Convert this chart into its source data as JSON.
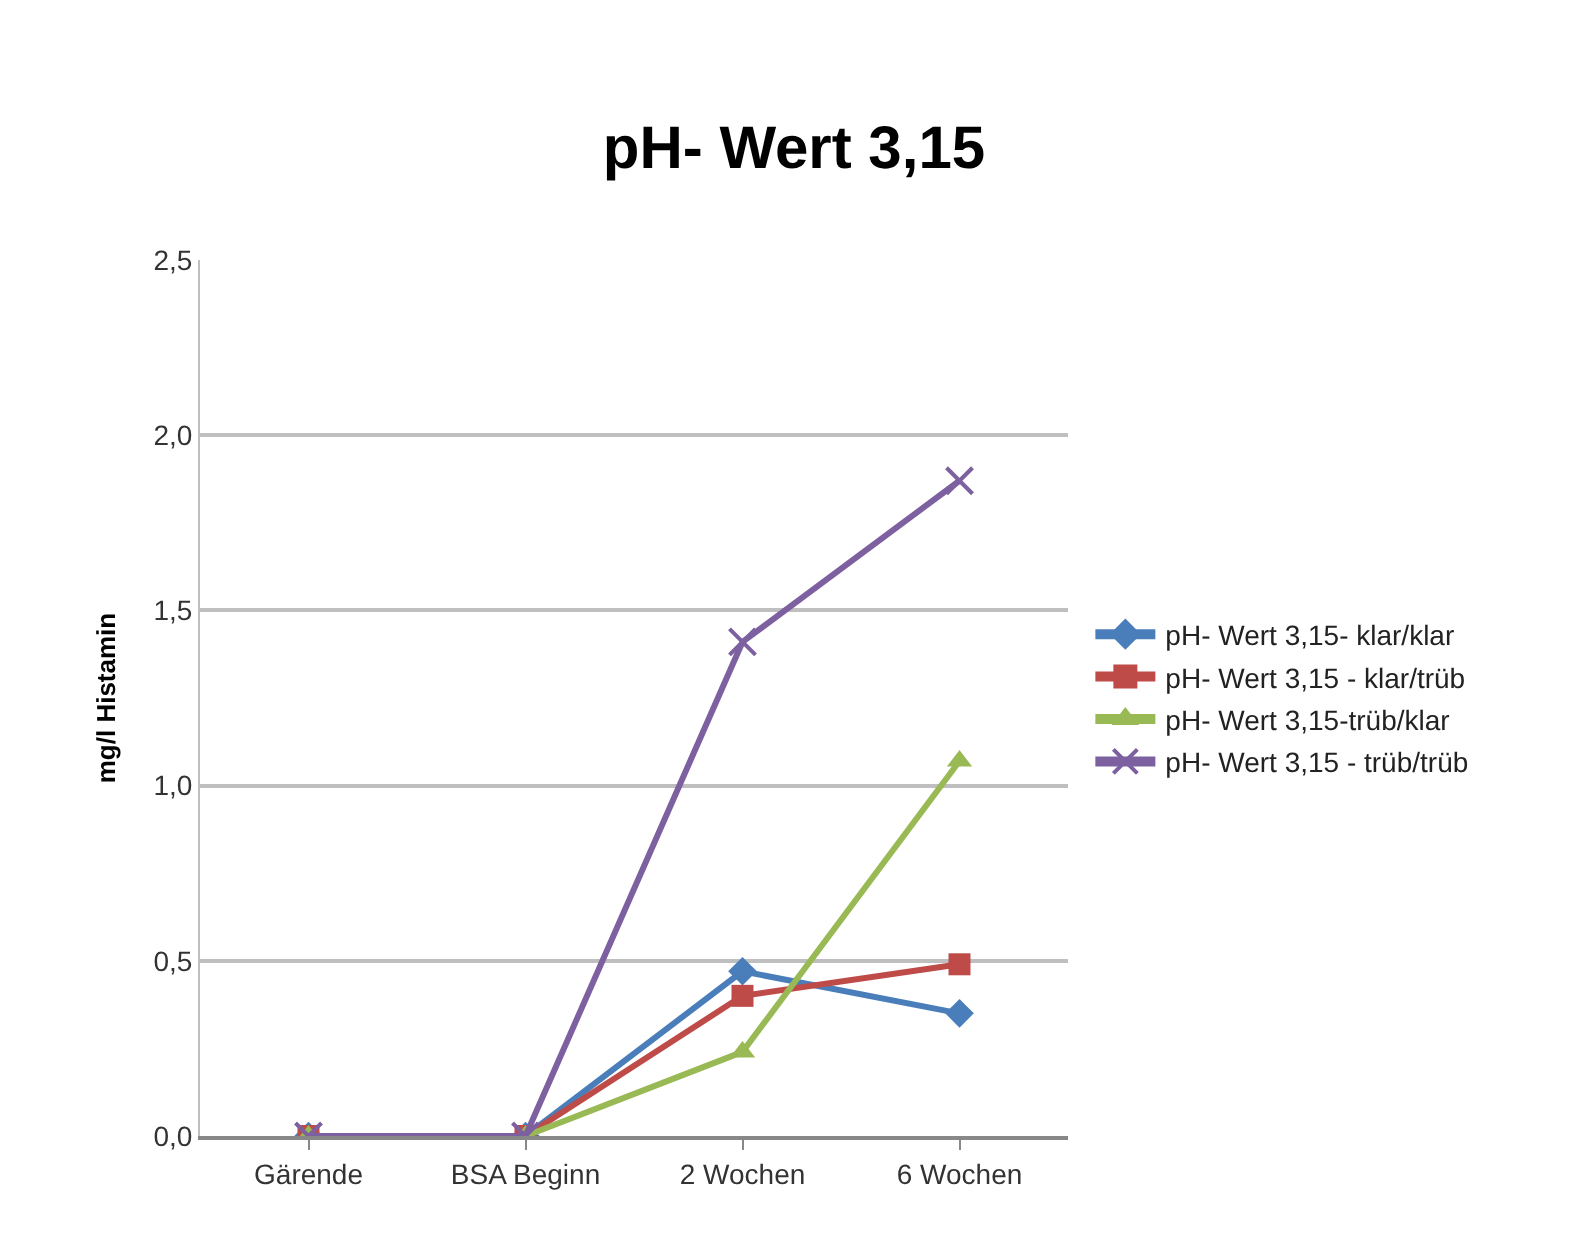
{
  "chart_data": {
    "type": "line",
    "title": "pH- Wert 3,15",
    "ylabel": "mg/l Histamin",
    "categories": [
      "Gärende",
      "BSA Beginn",
      "2 Wochen",
      "6 Wochen"
    ],
    "series": [
      {
        "name": "pH- Wert 3,15- klar/klar",
        "color": "#4a7ebb",
        "marker": "diamond",
        "values": [
          0,
          0,
          0.47,
          0.35
        ]
      },
      {
        "name": "pH- Wert 3,15 - klar/trüb",
        "color": "#be4b48",
        "marker": "square",
        "values": [
          0,
          0,
          0.4,
          0.49
        ]
      },
      {
        "name": "pH- Wert 3,15-trüb/klar",
        "color": "#98b954",
        "marker": "triangle",
        "values": [
          0,
          0,
          0.24,
          1.07
        ]
      },
      {
        "name": "pH- Wert 3,15 - trüb/trüb",
        "color": "#7d60a0",
        "marker": "cross",
        "values": [
          0,
          0,
          1.41,
          1.87
        ]
      }
    ],
    "ylim": [
      0,
      2.5
    ],
    "yticks": [
      {
        "value": 0,
        "label": "0,0"
      },
      {
        "value": 0.5,
        "label": "0,5"
      },
      {
        "value": 1,
        "label": "1,0"
      },
      {
        "value": 1.5,
        "label": "1,5"
      },
      {
        "value": 2,
        "label": "2,0"
      },
      {
        "value": 2.5,
        "label": "2,5"
      }
    ],
    "grid": "y",
    "legend": "right",
    "line_style": "solid"
  }
}
